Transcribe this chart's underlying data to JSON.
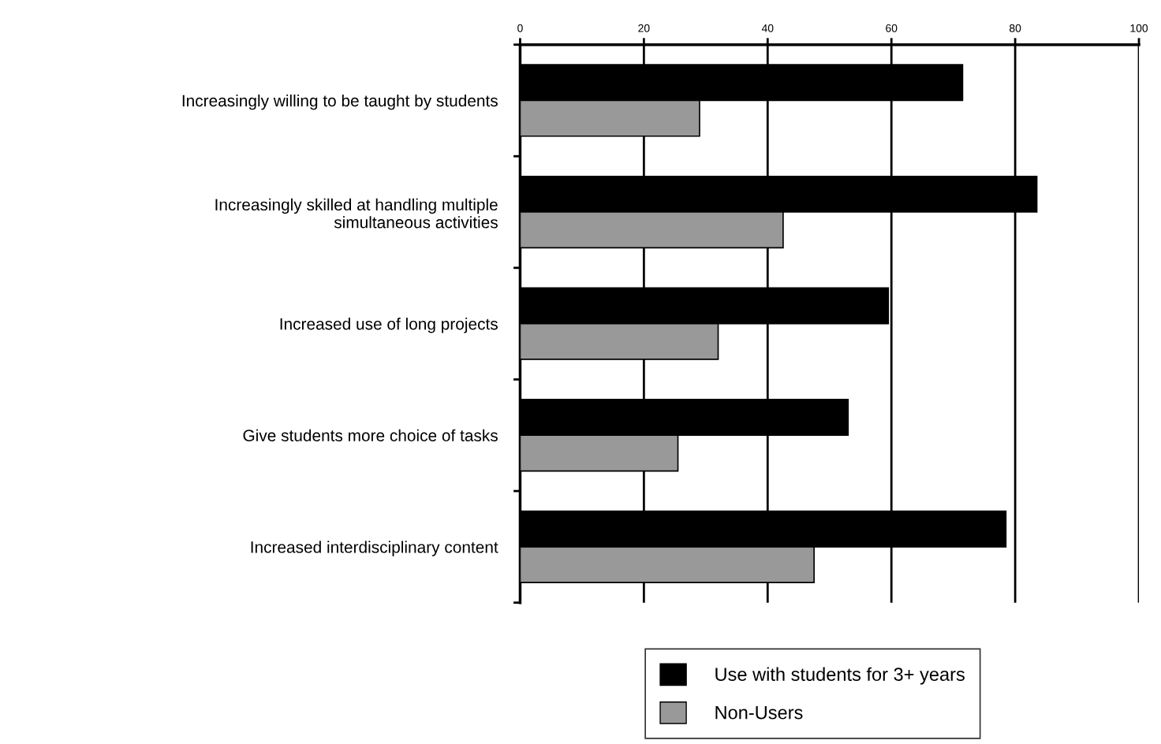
{
  "chart_data": {
    "type": "bar",
    "orientation": "horizontal",
    "categories": [
      "Increasingly willing to be taught by students",
      "Increasingly skilled at handling multiple\nsimultaneous activities",
      "Increased use of long projects",
      "Give students more choice of tasks",
      "Increased interdisciplinary content"
    ],
    "series": [
      {
        "name": "Use with students for 3+ years",
        "color": "#000000",
        "values": [
          71.5,
          83.5,
          59.5,
          53,
          78.5
        ]
      },
      {
        "name": "Non-Users",
        "color": "#999999",
        "values": [
          29,
          42.5,
          32,
          25.5,
          47.5
        ]
      }
    ],
    "xlim": [
      0,
      100
    ],
    "xticks": [
      0,
      20,
      40,
      60,
      80,
      100
    ],
    "grid": "x",
    "legend": "bottom"
  }
}
